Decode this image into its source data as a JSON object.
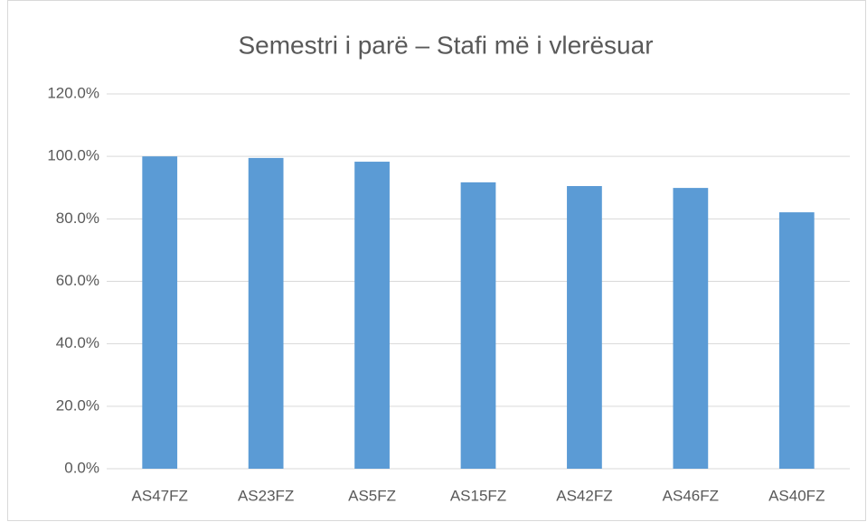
{
  "chart_data": {
    "type": "bar",
    "title": "Semestri i parë – Stafi më i vlerësuar",
    "categories": [
      "AS47FZ",
      "AS23FZ",
      "AS5FZ",
      "AS15FZ",
      "AS42FZ",
      "AS46FZ",
      "AS40FZ"
    ],
    "values": [
      100,
      99.5,
      98.3,
      91.7,
      90.5,
      89.9,
      82.1
    ],
    "color": "#5b9bd5",
    "ylim": [
      0,
      120
    ],
    "yticks": [
      {
        "value": 0,
        "label": "0.0%"
      },
      {
        "value": 20,
        "label": "20.0%"
      },
      {
        "value": 40,
        "label": "40.0%"
      },
      {
        "value": 60,
        "label": "60.0%"
      },
      {
        "value": 80,
        "label": "80.0%"
      },
      {
        "value": 100,
        "label": "100.0%"
      },
      {
        "value": 120,
        "label": "120.0%"
      }
    ],
    "grid": true
  }
}
